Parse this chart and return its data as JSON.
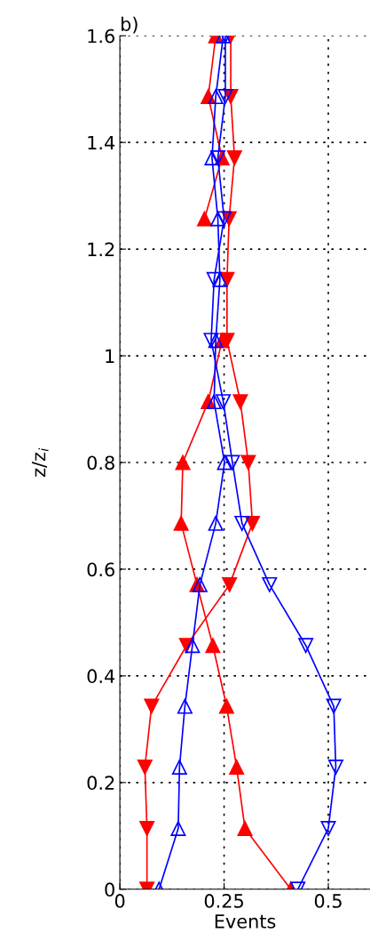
{
  "chart_data": {
    "type": "line",
    "title": "b)",
    "xlabel": "Events",
    "ylabel": "z/z$_{i}$",
    "xlim": [
      0,
      0.6
    ],
    "xticks": [
      0,
      0.25,
      0.5
    ],
    "ylim": [
      0,
      1.6
    ],
    "yticks": [
      0,
      0.2,
      0.4,
      0.6,
      0.8,
      1,
      1.2,
      1.4,
      1.6
    ],
    "grid": true,
    "line_style": "solid",
    "series": [
      {
        "color": "#ff0000",
        "marker": "triangle_down",
        "x": [
          0.065,
          0.065,
          0.06,
          0.076,
          0.16,
          0.263,
          0.318,
          0.308,
          0.289,
          0.257,
          0.257,
          0.262,
          0.275,
          0.266,
          0.266
        ],
        "values": [
          0,
          0.114,
          0.229,
          0.343,
          0.457,
          0.571,
          0.686,
          0.8,
          0.914,
          1.029,
          1.143,
          1.257,
          1.371,
          1.486,
          1.6
        ]
      },
      {
        "color": "#ff0000",
        "marker": "triangle",
        "x": [
          0.41,
          0.3,
          0.28,
          0.256,
          0.223,
          0.185,
          0.147,
          0.151,
          0.212,
          0.245,
          null,
          0.203,
          0.245,
          0.212,
          0.23
        ],
        "values": [
          0,
          0.114,
          0.229,
          0.343,
          0.457,
          0.571,
          0.686,
          0.8,
          0.914,
          1.029,
          null,
          1.257,
          1.371,
          1.486,
          1.6
        ]
      },
      {
        "color": "#0000ff",
        "marker": "triangle",
        "x": [
          0.094,
          0.14,
          0.143,
          0.156,
          0.174,
          0.192,
          0.23,
          0.251,
          0.226,
          0.23,
          0.24,
          0.235,
          0.221,
          0.23,
          0.248
        ],
        "values": [
          0,
          0.114,
          0.229,
          0.343,
          0.457,
          0.571,
          0.686,
          0.8,
          0.914,
          1.029,
          1.143,
          1.257,
          1.371,
          1.486,
          1.6
        ]
      },
      {
        "color": "#0000ff",
        "marker": "triangle_down",
        "x": [
          0.427,
          0.5,
          0.518,
          0.513,
          0.446,
          0.359,
          0.293,
          0.27,
          0.248,
          0.219,
          0.226,
          0.25,
          0.235,
          0.253,
          0.253
        ],
        "values": [
          0,
          0.114,
          0.229,
          0.343,
          0.457,
          0.571,
          0.686,
          0.8,
          0.914,
          1.029,
          1.143,
          1.257,
          1.371,
          1.486,
          1.6
        ]
      }
    ]
  }
}
